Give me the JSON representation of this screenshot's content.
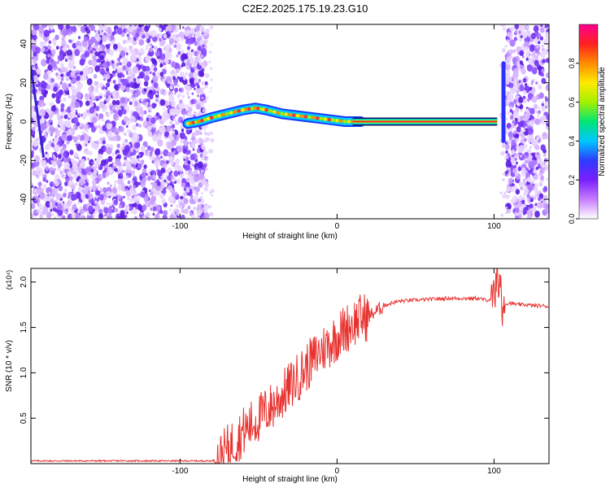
{
  "title": "C2E2.2025.175.19.23.G10",
  "chart_data": [
    {
      "type": "heatmap",
      "xlabel": "Height of straight line (km)",
      "ylabel": "Frequency (Hz)",
      "xlim": [
        -195,
        135
      ],
      "ylim": [
        -50,
        50
      ],
      "xticks": [
        -100,
        0,
        100
      ],
      "yticks": [
        -40,
        -20,
        0,
        20,
        40
      ],
      "colorbar": {
        "label": "Normalized spectral amplitude",
        "range": [
          0,
          1
        ],
        "ticks": [
          0.0,
          0.2,
          0.4,
          0.6,
          0.8
        ],
        "colors": [
          "#ffffff",
          "#c77cff",
          "#7a1fff",
          "#2d3bff",
          "#00c8ff",
          "#00e676",
          "#a4f000",
          "#ffea00",
          "#ff8c00",
          "#ff2020",
          "#ff0090"
        ]
      },
      "noise_regions_km": [
        [
          -195,
          -83
        ],
        [
          108,
          135
        ]
      ],
      "signal_trace": [
        {
          "x": -95,
          "y": -1
        },
        {
          "x": -88,
          "y": 0
        },
        {
          "x": -80,
          "y": 2
        },
        {
          "x": -70,
          "y": 4
        },
        {
          "x": -60,
          "y": 6
        },
        {
          "x": -52,
          "y": 7
        },
        {
          "x": -45,
          "y": 6
        },
        {
          "x": -35,
          "y": 4
        },
        {
          "x": -25,
          "y": 3
        },
        {
          "x": -15,
          "y": 2
        },
        {
          "x": -5,
          "y": 1
        },
        {
          "x": 5,
          "y": 0
        },
        {
          "x": 15,
          "y": 0
        },
        {
          "x": 100,
          "y": 0
        }
      ],
      "tone_segment": {
        "x_start": 10,
        "x_end": 102,
        "y": 0
      },
      "spike": {
        "x": 106,
        "y_min": -10,
        "y_max": 30
      }
    },
    {
      "type": "line",
      "xlabel": "Height of straight line (km)",
      "ylabel": "SNR (10 * v/v)",
      "y_multiplier": "(x10⁴)",
      "xlim": [
        -195,
        135
      ],
      "ylim": [
        0,
        2.15
      ],
      "xticks": [
        -100,
        0,
        100
      ],
      "yticks": [
        0.5,
        1.0,
        1.5,
        2.0
      ],
      "color": "#e8322f",
      "series": [
        {
          "x": [
            -195,
            -150,
            -100,
            -80,
            -75,
            -70,
            -65,
            -60,
            -55,
            -50,
            -45,
            -40,
            -35,
            -30,
            -25,
            -20,
            -15,
            -10,
            -5,
            0,
            5,
            10,
            15,
            20,
            25,
            30,
            35,
            40,
            50,
            60,
            70,
            80,
            90,
            95,
            100,
            102,
            105,
            110,
            115,
            120,
            125,
            130,
            135
          ],
          "y": [
            0.03,
            0.03,
            0.03,
            0.03,
            0.05,
            0.15,
            0.25,
            0.35,
            0.42,
            0.5,
            0.58,
            0.65,
            0.75,
            0.85,
            0.95,
            1.05,
            1.15,
            1.25,
            1.32,
            1.4,
            1.48,
            1.55,
            1.6,
            1.62,
            1.68,
            1.74,
            1.77,
            1.79,
            1.8,
            1.81,
            1.82,
            1.82,
            1.82,
            1.8,
            1.82,
            2.1,
            1.75,
            1.77,
            1.75,
            1.75,
            1.74,
            1.74,
            1.73
          ]
        }
      ]
    }
  ]
}
